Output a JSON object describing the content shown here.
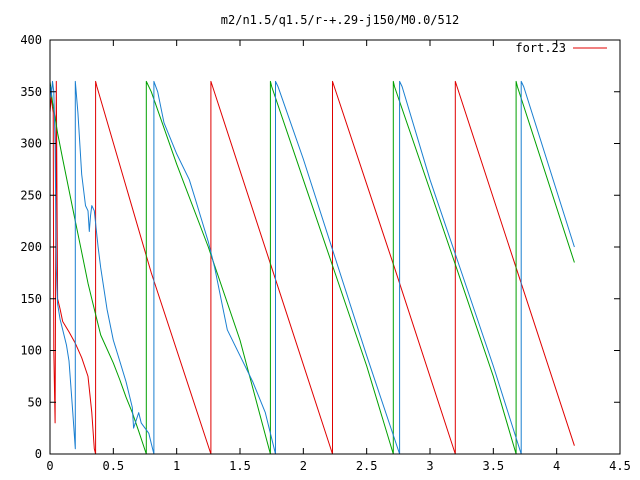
{
  "chart_data": {
    "type": "line",
    "title": "m2/n1.5/q1.5/r-+.29-j150/M0.0/512",
    "xlabel": "",
    "ylabel": "",
    "xlim": [
      0,
      4.5
    ],
    "ylim": [
      0,
      400
    ],
    "x_ticks": [
      {
        "value": 0,
        "label": "0"
      },
      {
        "value": 0.5,
        "label": "0.5"
      },
      {
        "value": 1,
        "label": "1"
      },
      {
        "value": 1.5,
        "label": "1.5"
      },
      {
        "value": 2,
        "label": "2"
      },
      {
        "value": 2.5,
        "label": "2.5"
      },
      {
        "value": 3,
        "label": "3"
      },
      {
        "value": 3.5,
        "label": "3.5"
      },
      {
        "value": 4,
        "label": "4"
      },
      {
        "value": 4.5,
        "label": "4.5"
      }
    ],
    "y_ticks": [
      {
        "value": 0,
        "label": "0"
      },
      {
        "value": 50,
        "label": "50"
      },
      {
        "value": 100,
        "label": "100"
      },
      {
        "value": 150,
        "label": "150"
      },
      {
        "value": 200,
        "label": "200"
      },
      {
        "value": 250,
        "label": "250"
      },
      {
        "value": 300,
        "label": "300"
      },
      {
        "value": 350,
        "label": "350"
      },
      {
        "value": 400,
        "label": "400"
      }
    ],
    "grid": false,
    "legend": {
      "position": "top-right",
      "entries": [
        "fort.23"
      ]
    },
    "series": [
      {
        "name": "fort.23",
        "color": "#e00000",
        "x": [
          0.0,
          0.01,
          0.02,
          0.025,
          0.03,
          0.04,
          0.05,
          0.06,
          0.08,
          0.1,
          0.15,
          0.2,
          0.25,
          0.3,
          0.33,
          0.35,
          0.36,
          0.36,
          0.37,
          0.8,
          1.27,
          1.27,
          1.75,
          2.23,
          2.23,
          2.72,
          3.2,
          3.2,
          3.68,
          4.14
        ],
        "y": [
          330,
          345,
          335,
          330,
          100,
          30,
          360,
          150,
          140,
          128,
          118,
          107,
          93,
          75,
          40,
          5,
          0,
          360,
          355,
          175,
          0,
          360,
          180,
          0,
          360,
          180,
          0,
          360,
          180,
          8
        ]
      },
      {
        "name": "",
        "color": "#00a000",
        "x": [
          0.0,
          0.02,
          0.04,
          0.06,
          0.1,
          0.15,
          0.2,
          0.25,
          0.3,
          0.35,
          0.4,
          0.5,
          0.55,
          0.6,
          0.65,
          0.7,
          0.76,
          0.76,
          0.8,
          1.0,
          1.25,
          1.5,
          1.74,
          1.74,
          1.75,
          2.0,
          2.25,
          2.5,
          2.71,
          2.71,
          2.72,
          3.0,
          3.25,
          3.5,
          3.68,
          3.68,
          3.69,
          4.14
        ],
        "y": [
          360,
          340,
          325,
          310,
          285,
          255,
          225,
          195,
          165,
          140,
          115,
          88,
          72,
          55,
          40,
          22,
          0,
          360,
          350,
          280,
          200,
          110,
          0,
          360,
          355,
          265,
          175,
          85,
          0,
          360,
          355,
          255,
          165,
          75,
          0,
          360,
          355,
          185
        ]
      },
      {
        "name": "",
        "color": "#1a7fd0",
        "x": [
          0.0,
          0.005,
          0.01,
          0.02,
          0.03,
          0.04,
          0.05,
          0.06,
          0.08,
          0.1,
          0.13,
          0.15,
          0.18,
          0.2,
          0.2,
          0.22,
          0.25,
          0.28,
          0.3,
          0.31,
          0.32,
          0.33,
          0.35,
          0.38,
          0.4,
          0.45,
          0.5,
          0.55,
          0.6,
          0.65,
          0.66,
          0.7,
          0.72,
          0.78,
          0.8,
          0.82,
          0.82,
          0.85,
          0.9,
          1.0,
          1.1,
          1.15,
          1.2,
          1.25,
          1.3,
          1.35,
          1.4,
          1.5,
          1.6,
          1.7,
          1.78,
          1.78,
          1.8,
          2.0,
          2.25,
          2.5,
          2.76,
          2.76,
          2.78,
          3.0,
          3.25,
          3.5,
          3.72,
          3.72,
          3.74,
          4.14
        ],
        "y": [
          350,
          355,
          345,
          360,
          350,
          300,
          180,
          145,
          130,
          120,
          105,
          90,
          40,
          5,
          360,
          330,
          270,
          240,
          235,
          215,
          230,
          240,
          235,
          200,
          180,
          140,
          110,
          90,
          70,
          45,
          25,
          40,
          30,
          20,
          10,
          0,
          360,
          350,
          320,
          290,
          265,
          245,
          225,
          205,
          180,
          150,
          120,
          95,
          70,
          40,
          0,
          360,
          355,
          285,
          190,
          95,
          0,
          360,
          355,
          265,
          175,
          85,
          0,
          360,
          355,
          200
        ]
      }
    ]
  }
}
